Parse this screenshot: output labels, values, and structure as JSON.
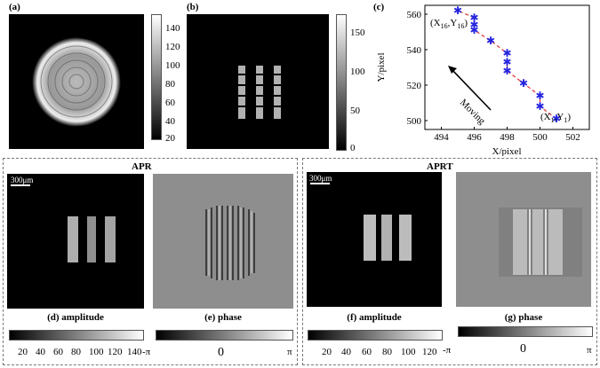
{
  "panels": {
    "a": {
      "label": "(a)",
      "colorbar_ticks": [
        "140",
        "120",
        "100",
        "80",
        "60",
        "40",
        "20"
      ]
    },
    "b": {
      "label": "(b)",
      "colorbar_ticks": [
        "150",
        "100",
        "50",
        "0"
      ]
    },
    "c": {
      "label": "(c)",
      "xlabel": "X/pixel",
      "ylabel": "Y/pixel",
      "xticks": [
        "494",
        "496",
        "498",
        "500",
        "502"
      ],
      "yticks": [
        "560",
        "540",
        "520",
        "500"
      ],
      "moving_text": "Moving",
      "start_label": "(X",
      "start_sub": "1",
      "start_mid": ",Y",
      "start_sub2": "1",
      "start_end": ")",
      "end_label": "(X",
      "end_sub": "16",
      "end_mid": ",Y",
      "end_sub2": "16",
      "end_end": ")"
    },
    "apr": {
      "title": "APR",
      "scalebar": "300μm",
      "d_caption": "(d) amplitude",
      "e_caption": "(e) phase",
      "amp_ticks": [
        "20",
        "40",
        "60",
        "80",
        "100",
        "120",
        "140"
      ],
      "phase_ticks": [
        "-π",
        "0",
        "π"
      ]
    },
    "aprt": {
      "title": "APRT",
      "scalebar": "300μm",
      "f_caption": "(f) amplitude",
      "g_caption": "(g) phase",
      "amp_ticks": [
        "20",
        "40",
        "60",
        "80",
        "100",
        "120"
      ],
      "phase_ticks": [
        "-π",
        "0",
        "π"
      ]
    }
  },
  "chart_data": {
    "type": "scatter",
    "title": "",
    "xlabel": "X/pixel",
    "ylabel": "Y/pixel",
    "xlim": [
      493,
      503
    ],
    "ylim": [
      495,
      565
    ],
    "x": [
      501,
      500,
      500,
      499,
      498,
      498,
      498,
      497,
      496,
      496,
      496,
      495
    ],
    "y": [
      501,
      508,
      514,
      521,
      528,
      533,
      538,
      545,
      551,
      554,
      558,
      562
    ],
    "colors": {
      "points": "#2424e0",
      "line": "#e03030",
      "arrow": "#000000"
    }
  }
}
